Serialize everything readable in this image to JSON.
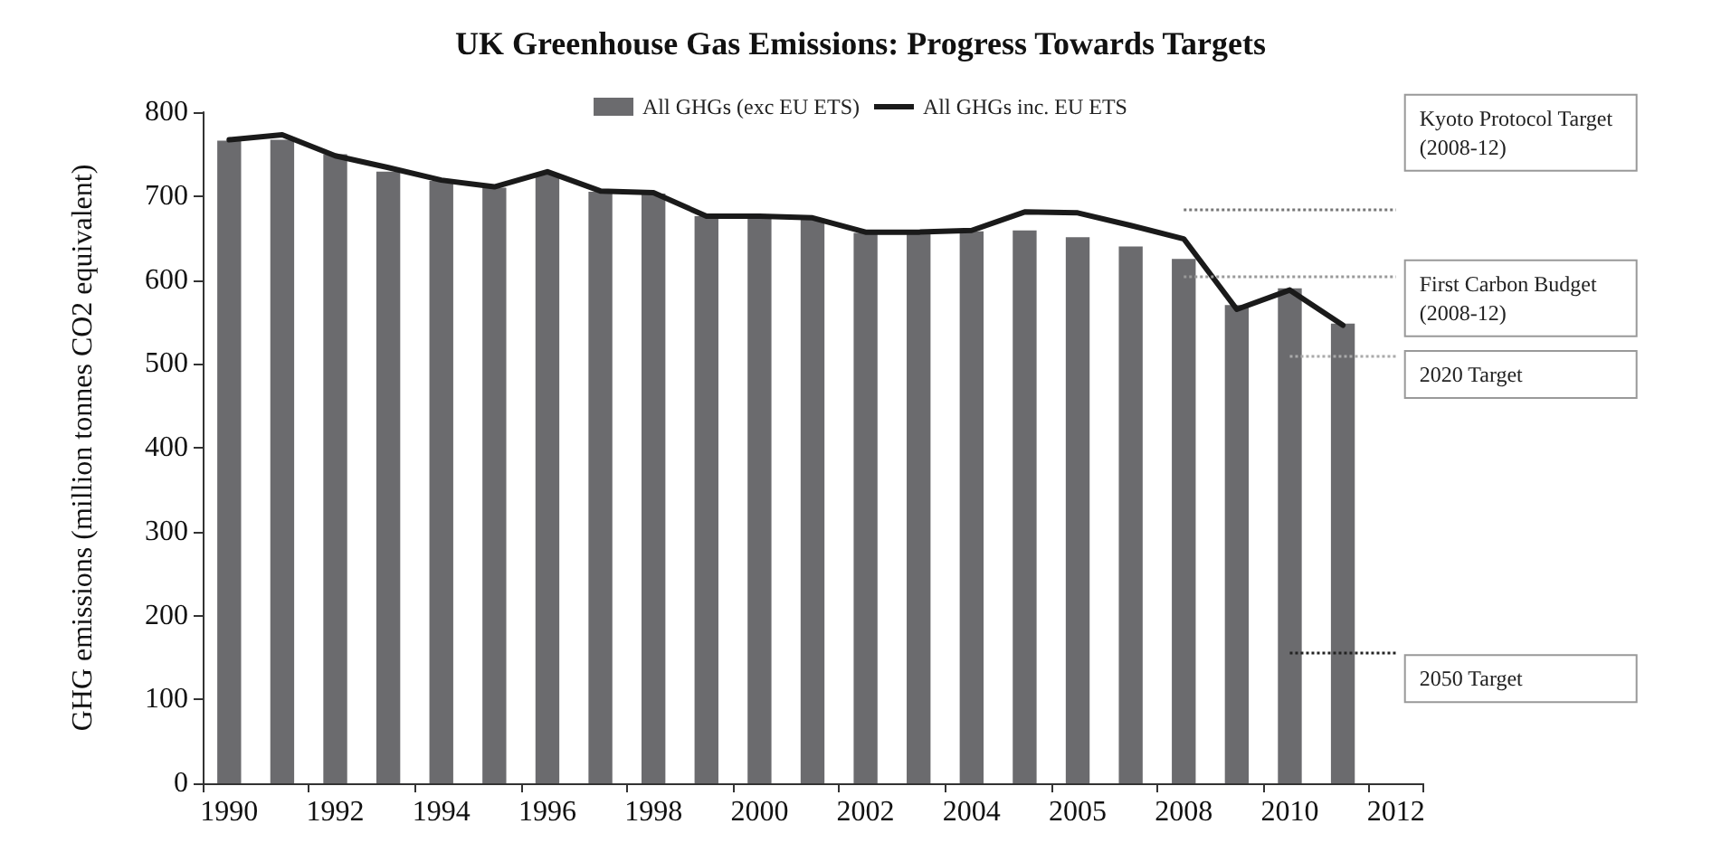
{
  "chart_data": {
    "type": "bar",
    "title": "UK Greenhouse Gas Emissions: Progress Towards Targets",
    "ylabel": "GHG emissions (million tonnes CO2 equivalent)",
    "categories": [
      "1990",
      null,
      "1992",
      null,
      "1994",
      null,
      "1996",
      null,
      "1998",
      null,
      "2000",
      null,
      "2002",
      null,
      "2004",
      null,
      "2005",
      null,
      "2008",
      null,
      "2010",
      null,
      "2012"
    ],
    "series": [
      {
        "name": "All GHGs (exc EU ETS)",
        "color": "#6b6b6e",
        "values": [
          766,
          767,
          750,
          729,
          718,
          710,
          727,
          705,
          703,
          676,
          676,
          673,
          656,
          656,
          658,
          659,
          651,
          640,
          625,
          570,
          590,
          548,
          null
        ]
      },
      {
        "name": "All GHGs inc. EU ETS",
        "type": "line",
        "color": "#1a1a1a",
        "values": [
          767,
          773,
          748,
          734,
          719,
          711,
          729,
          706,
          704,
          676,
          676,
          674,
          657,
          657,
          659,
          681,
          680,
          665,
          649,
          565,
          588,
          546,
          null
        ]
      }
    ],
    "ylim": [
      0,
      800
    ],
    "yticks": [
      0,
      100,
      200,
      300,
      400,
      500,
      600,
      700,
      800
    ],
    "ref_lines": [
      {
        "axis": "y",
        "value": 685,
        "label": "Kyoto Protocol Target (2008-12)",
        "color": "#777777",
        "line_style": "dotted"
      },
      {
        "axis": "y",
        "value": 604,
        "label": "First Carbon Budget (2008-12)",
        "color": "#999999",
        "line_style": "dotted"
      },
      {
        "axis": "y",
        "value": 509,
        "label": "2020 Target",
        "color": "#aaaaaa",
        "line_style": "dotted"
      },
      {
        "axis": "y",
        "value": 155,
        "label": "2050 Target",
        "color": "#222222",
        "line_style": "dotted"
      }
    ],
    "grid": false,
    "legend": "top",
    "marker": "none",
    "line_style": "solid"
  }
}
